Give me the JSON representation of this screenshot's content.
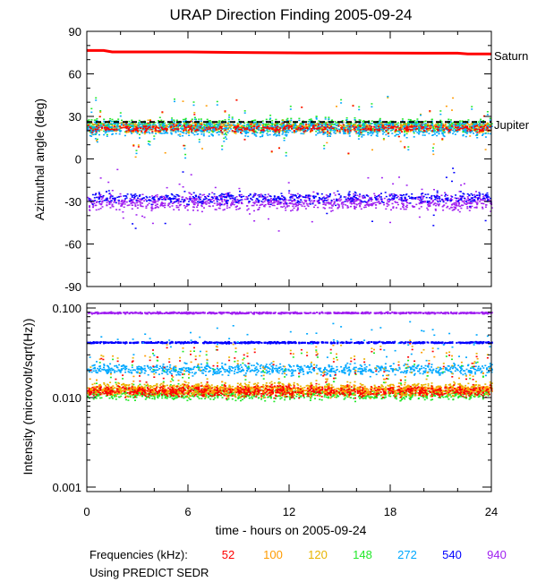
{
  "chart_data": [
    {
      "type": "scatter",
      "title": "URAP Direction Finding  2005-09-24",
      "ylabel": "Azimuthal angle (deg)",
      "xlim": [
        0,
        24
      ],
      "ylim": [
        -90,
        90
      ],
      "yticks": [
        "-90",
        "-60",
        "-30",
        "0",
        "30",
        "60",
        "90"
      ],
      "annotations": [
        {
          "label": "Saturn",
          "y": 75
        },
        {
          "label": "Jupiter",
          "y": 26
        }
      ],
      "series": [
        {
          "name": "Saturn",
          "color": "#ff0000",
          "kind": "line",
          "x": [
            0,
            1,
            1.5,
            6,
            10,
            13,
            16,
            20,
            22,
            22.6,
            24
          ],
          "y": [
            76.5,
            76.5,
            75.5,
            75.5,
            75,
            74.8,
            74.8,
            74.6,
            74.6,
            74,
            74
          ]
        },
        {
          "name": "Jupiter",
          "color": "#000000",
          "kind": "dashed",
          "x": [
            0,
            24
          ],
          "y": [
            26,
            26
          ]
        },
        {
          "name": "940 kHz",
          "color": "#a020f0",
          "kind": "band",
          "center": -30,
          "spread": 8
        },
        {
          "name": "540 kHz",
          "color": "#0000ff",
          "kind": "band",
          "center": -27,
          "spread": 6
        },
        {
          "name": "148 kHz",
          "color": "#22e82a",
          "kind": "band",
          "center": 24,
          "spread": 7
        },
        {
          "name": "120 kHz",
          "color": "#e8b400",
          "kind": "band",
          "center": 22,
          "spread": 6
        },
        {
          "name": "100 kHz",
          "color": "#ff9b00",
          "kind": "band",
          "center": 23,
          "spread": 5
        },
        {
          "name": "272 kHz",
          "color": "#00a8ff",
          "kind": "band",
          "center": 22,
          "spread": 8
        },
        {
          "name": "52 kHz",
          "color": "#ff0000",
          "kind": "band",
          "center": 22,
          "spread": 4
        }
      ]
    },
    {
      "type": "scatter",
      "ylabel": "Intensity (microvolt/sqrt(Hz))",
      "xlabel": "time - hours on 2005-09-24",
      "xlim": [
        0,
        24
      ],
      "ylim": [
        0.001,
        0.1
      ],
      "yscale": "log",
      "xticks": [
        "0",
        "6",
        "12",
        "18",
        "24"
      ],
      "yticks": [
        "0.001",
        "0.010",
        "0.100"
      ],
      "series": [
        {
          "name": "940 kHz",
          "color": "#a020f0",
          "level": 0.09
        },
        {
          "name": "540 kHz",
          "color": "#0000ff",
          "level": 0.042
        },
        {
          "name": "272 kHz",
          "color": "#00a8ff",
          "level": 0.021
        },
        {
          "name": "148 kHz",
          "color": "#22e82a",
          "level": 0.011
        },
        {
          "name": "120 kHz",
          "color": "#e8b400",
          "level": 0.013
        },
        {
          "name": "100 kHz",
          "color": "#ff9b00",
          "level": 0.012
        },
        {
          "name": "52 kHz",
          "color": "#ff0000",
          "level": 0.012
        }
      ]
    }
  ],
  "legend": {
    "label": "Frequencies (kHz):",
    "items": [
      {
        "text": "52",
        "color": "#ff0000"
      },
      {
        "text": "100",
        "color": "#ff9b00"
      },
      {
        "text": "120",
        "color": "#e8b400"
      },
      {
        "text": "148",
        "color": "#22e82a"
      },
      {
        "text": "272",
        "color": "#00a8ff"
      },
      {
        "text": "540",
        "color": "#0000ff"
      },
      {
        "text": "940",
        "color": "#a020f0"
      }
    ]
  },
  "footer": "Using PREDICT SEDR"
}
